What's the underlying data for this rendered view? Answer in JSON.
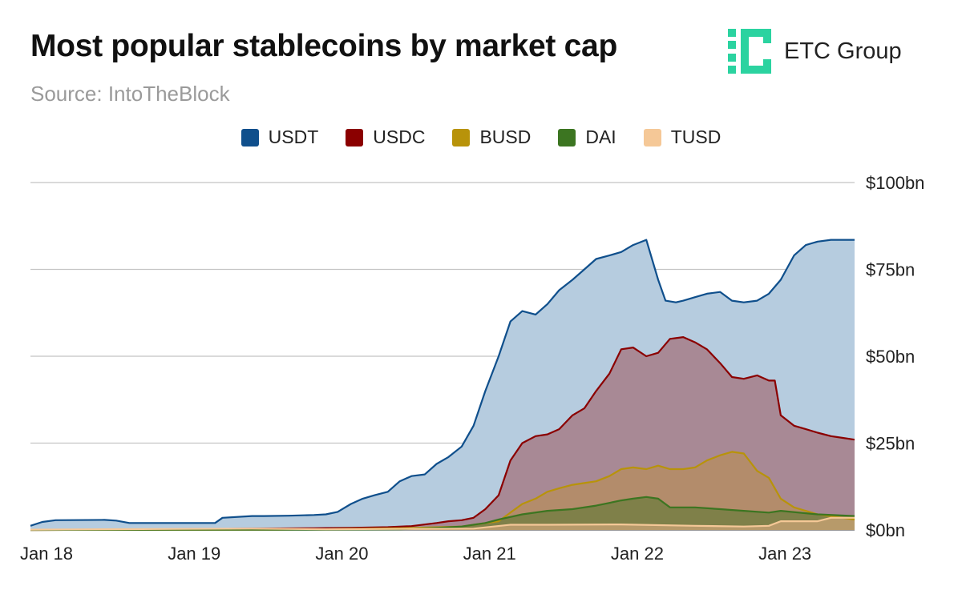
{
  "header": {
    "title": "Most popular stablecoins by market cap",
    "subtitle": "Source: IntoTheBlock",
    "brand_name": "ETC Group",
    "brand_color": "#2bd3a0"
  },
  "chart_data": {
    "type": "area",
    "title": "Most popular stablecoins by market cap",
    "subtitle": "Source: IntoTheBlock",
    "xlabel": "",
    "ylabel": "",
    "ylim": [
      0,
      100
    ],
    "y_ticks": [
      0,
      25,
      50,
      75,
      100
    ],
    "y_tick_labels": [
      "$0bn",
      "$25bn",
      "$50bn",
      "$75bn",
      "$100bn"
    ],
    "x_ticks": [
      2018.0,
      2019.0,
      2020.0,
      2021.0,
      2022.0,
      2023.0
    ],
    "x_tick_labels": [
      "Jan 18",
      "Jan 19",
      "Jan 20",
      "Jan 21",
      "Jan 22",
      "Jan 23"
    ],
    "xlim": [
      2018.0,
      2023.58
    ],
    "grid": true,
    "legend_position": "top",
    "x_unit": "year (decimal)",
    "series": [
      {
        "name": "USDT",
        "color": "#0f4f8c",
        "fill": "#b6ccdf",
        "x": [
          2018.0,
          2018.08,
          2018.17,
          2018.5,
          2018.58,
          2018.67,
          2018.75,
          2018.83,
          2019.0,
          2019.25,
          2019.3,
          2019.5,
          2019.58,
          2019.75,
          2019.92,
          2020.0,
          2020.08,
          2020.17,
          2020.25,
          2020.33,
          2020.42,
          2020.5,
          2020.58,
          2020.67,
          2020.75,
          2020.83,
          2020.92,
          2021.0,
          2021.08,
          2021.17,
          2021.25,
          2021.33,
          2021.42,
          2021.5,
          2021.58,
          2021.67,
          2021.75,
          2021.83,
          2021.92,
          2022.0,
          2022.08,
          2022.17,
          2022.25,
          2022.3,
          2022.37,
          2022.42,
          2022.5,
          2022.58,
          2022.67,
          2022.75,
          2022.83,
          2022.92,
          2023.0,
          2023.08,
          2023.17,
          2023.25,
          2023.33,
          2023.42,
          2023.5,
          2023.58
        ],
        "values": [
          1.2,
          2.3,
          2.8,
          2.9,
          2.7,
          2.0,
          2.0,
          2.0,
          2.0,
          2.0,
          3.5,
          4.0,
          4.0,
          4.1,
          4.3,
          4.5,
          5.2,
          7.5,
          9.0,
          10.0,
          11.0,
          14.0,
          15.5,
          16.0,
          19.0,
          21.0,
          24.0,
          30.0,
          40.0,
          50.0,
          60.0,
          63.0,
          62.0,
          65.0,
          69.0,
          72.0,
          75.0,
          78.0,
          79.0,
          80.0,
          82.0,
          83.5,
          72.0,
          66.0,
          65.5,
          66.0,
          67.0,
          68.0,
          68.5,
          66.0,
          65.5,
          66.0,
          68.0,
          72.0,
          79.0,
          82.0,
          83.0,
          83.5,
          83.5,
          83.5
        ]
      },
      {
        "name": "USDC",
        "color": "#8b0000",
        "fill": "#a88995",
        "x": [
          2018.0,
          2018.83,
          2019.0,
          2019.5,
          2019.92,
          2020.17,
          2020.42,
          2020.58,
          2020.75,
          2020.83,
          2020.92,
          2021.0,
          2021.08,
          2021.17,
          2021.25,
          2021.33,
          2021.42,
          2021.5,
          2021.58,
          2021.67,
          2021.75,
          2021.83,
          2021.92,
          2022.0,
          2022.08,
          2022.17,
          2022.25,
          2022.33,
          2022.42,
          2022.5,
          2022.58,
          2022.67,
          2022.75,
          2022.83,
          2022.92,
          2023.0,
          2023.04,
          2023.08,
          2023.17,
          2023.25,
          2023.33,
          2023.42,
          2023.5,
          2023.58
        ],
        "values": [
          0.0,
          0.1,
          0.2,
          0.4,
          0.5,
          0.6,
          0.8,
          1.1,
          2.0,
          2.5,
          2.8,
          3.5,
          6.0,
          10.0,
          20.0,
          25.0,
          27.0,
          27.5,
          29.0,
          33.0,
          35.0,
          40.0,
          45.0,
          52.0,
          52.5,
          50.0,
          51.0,
          55.0,
          55.5,
          54.0,
          52.0,
          48.0,
          44.0,
          43.5,
          44.5,
          43.0,
          43.0,
          33.0,
          30.0,
          29.0,
          28.0,
          27.0,
          26.5,
          26.0
        ]
      },
      {
        "name": "BUSD",
        "color": "#b8930a",
        "fill": "#b38c6b",
        "x": [
          2018.0,
          2019.67,
          2020.0,
          2020.5,
          2020.92,
          2021.0,
          2021.17,
          2021.25,
          2021.33,
          2021.42,
          2021.5,
          2021.58,
          2021.67,
          2021.75,
          2021.83,
          2021.92,
          2022.0,
          2022.08,
          2022.17,
          2022.25,
          2022.33,
          2022.42,
          2022.5,
          2022.58,
          2022.67,
          2022.75,
          2022.83,
          2022.92,
          2023.0,
          2023.08,
          2023.17,
          2023.33,
          2023.5,
          2023.58
        ],
        "values": [
          0.0,
          0.1,
          0.2,
          0.5,
          1.0,
          1.5,
          2.5,
          5.0,
          7.5,
          9.0,
          11.0,
          12.0,
          13.0,
          13.5,
          14.0,
          15.5,
          17.5,
          18.0,
          17.5,
          18.5,
          17.5,
          17.5,
          18.0,
          20.0,
          21.5,
          22.5,
          22.0,
          17.0,
          15.0,
          9.0,
          6.5,
          4.5,
          3.5,
          3.0
        ]
      },
      {
        "name": "DAI",
        "color": "#3c7521",
        "fill": "#7f8049",
        "x": [
          2018.0,
          2019.0,
          2020.0,
          2020.5,
          2020.75,
          2020.92,
          2021.0,
          2021.08,
          2021.17,
          2021.33,
          2021.5,
          2021.67,
          2021.83,
          2022.0,
          2022.08,
          2022.17,
          2022.25,
          2022.33,
          2022.5,
          2022.67,
          2022.83,
          2023.0,
          2023.08,
          2023.33,
          2023.58
        ],
        "values": [
          0.0,
          0.1,
          0.1,
          0.2,
          0.6,
          1.0,
          1.5,
          2.0,
          3.0,
          4.5,
          5.5,
          6.0,
          7.0,
          8.5,
          9.0,
          9.5,
          9.0,
          6.5,
          6.5,
          6.0,
          5.5,
          5.0,
          5.5,
          4.5,
          4.0
        ]
      },
      {
        "name": "TUSD",
        "color": "#f5c897",
        "fill": "#b79a6a",
        "x": [
          2018.0,
          2018.5,
          2019.0,
          2019.5,
          2020.0,
          2020.5,
          2021.0,
          2021.25,
          2021.5,
          2022.0,
          2022.5,
          2022.83,
          2023.0,
          2023.08,
          2023.33,
          2023.42,
          2023.58
        ],
        "values": [
          0.1,
          0.2,
          0.3,
          0.4,
          0.2,
          0.3,
          0.4,
          1.5,
          1.5,
          1.6,
          1.2,
          1.0,
          1.2,
          2.5,
          2.5,
          3.5,
          3.5
        ]
      }
    ]
  }
}
